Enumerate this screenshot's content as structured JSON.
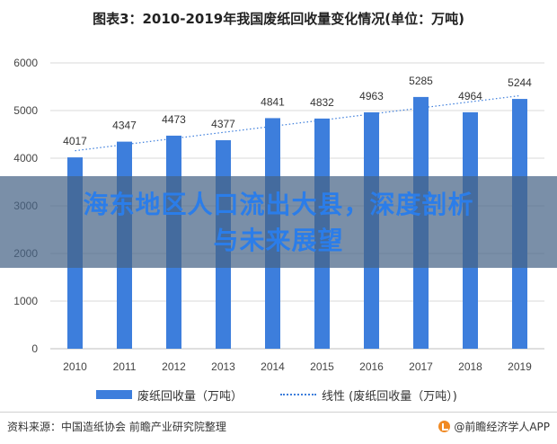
{
  "title": "图表3：2010-2019年我国废纸回收量变化情况(单位：万吨)",
  "overlay": {
    "line1": "海东地区人口流出大县，深度剖析",
    "line2": "与未来展望"
  },
  "legend": {
    "bar_label": "废纸回收量（万吨）",
    "line_label": "线性 (废纸回收量（万吨）)"
  },
  "footer": {
    "source": "资料来源：中国造纸协会 前瞻产业研究院整理",
    "brand": "@前瞻经济学人APP",
    "brand_icon": "brand-logo-icon"
  },
  "colors": {
    "bar": "#3d7edc",
    "trend": "#3d7edc",
    "grid": "#d9d9d9"
  },
  "chart_data": {
    "type": "bar",
    "categories": [
      "2010",
      "2011",
      "2012",
      "2013",
      "2014",
      "2015",
      "2016",
      "2017",
      "2018",
      "2019"
    ],
    "series": [
      {
        "name": "废纸回收量（万吨）",
        "values": [
          4017,
          4347,
          4473,
          4377,
          4841,
          4832,
          4963,
          5285,
          4964,
          5244
        ]
      }
    ],
    "trendline": {
      "name": "线性 (废纸回收量（万吨）)",
      "type": "linear",
      "style": "dotted"
    },
    "yticks": [
      0,
      1000,
      2000,
      3000,
      4000,
      5000,
      6000
    ],
    "ylim": [
      0,
      6000
    ],
    "grid": true,
    "data_labels": true,
    "legend_position": "bottom",
    "title": "图表3：2010-2019年我国废纸回收量变化情况(单位：万吨)",
    "xlabel": "",
    "ylabel": ""
  }
}
